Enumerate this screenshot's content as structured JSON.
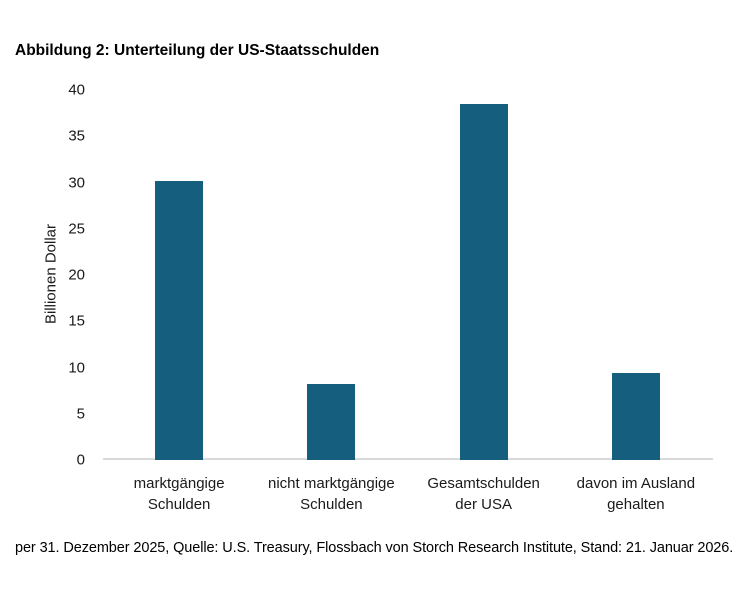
{
  "header": {
    "title": "Abbildung 2: Unterteilung der US-Staatsschulden"
  },
  "chart_data": {
    "type": "bar",
    "title": "Abbildung 2: Unterteilung der US-Staatsschulden",
    "categories": [
      "marktgängige\nSchulden",
      "nicht marktgängige\nSchulden",
      "Gesamtschulden\nder USA",
      "davon im Ausland\ngehalten"
    ],
    "values": [
      30.2,
      8.2,
      38.5,
      9.4
    ],
    "xlabel": "",
    "ylabel": "Billionen Dollar",
    "ylim": [
      0,
      40
    ],
    "ytick_step": 5,
    "yticks": [
      0,
      5,
      10,
      15,
      20,
      25,
      30,
      35,
      40
    ],
    "grid": false,
    "legend": null
  },
  "footer": {
    "text": "per 31. Dezember 2025, Quelle: U.S. Treasury, Flossbach von Storch Research Institute, Stand: 21. Januar 2026."
  },
  "colors": {
    "bar": "#165E7E",
    "axis_line": "#D9D9D9",
    "text": "#000000"
  }
}
